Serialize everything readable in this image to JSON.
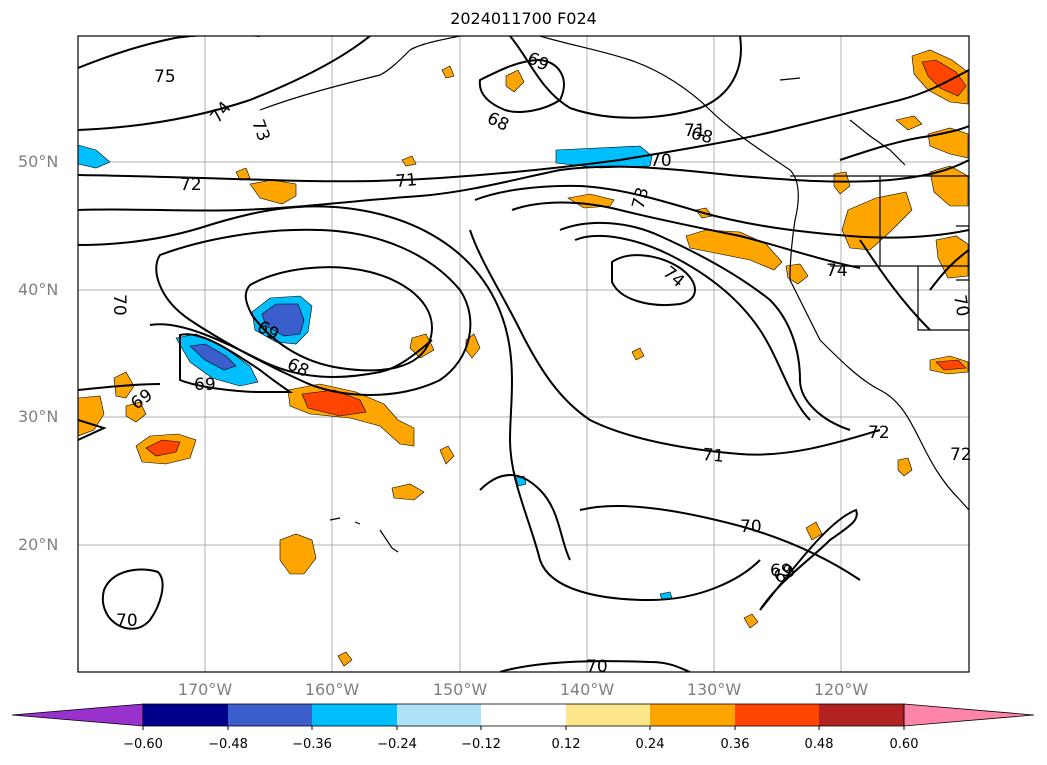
{
  "title": "2024011700 F024",
  "colors": {
    "contour": "#000000",
    "grid": "#b0b0b0",
    "coast": "#000000",
    "neg_light": "#a6dcf5",
    "neg_mid": "#00bfff",
    "neg_strong": "#3a5fcd",
    "pos_light": "#fde68a",
    "pos_mid": "#ffa500",
    "pos_strong": "#ff4500"
  },
  "axes": {
    "lat_labels": [
      "50°N",
      "40°N",
      "30°N",
      "20°N"
    ],
    "lon_labels": [
      "170°W",
      "160°W",
      "150°W",
      "140°W",
      "130°W",
      "120°W"
    ]
  },
  "contour_labels": [
    "75",
    "74",
    "73",
    "72",
    "71",
    "70",
    "69",
    "68",
    "69",
    "68",
    "70",
    "71",
    "73",
    "74",
    "74",
    "70",
    "68",
    "69",
    "69",
    "69",
    "71",
    "72",
    "70",
    "69",
    "70",
    "70",
    "72"
  ],
  "colorbar": {
    "ticks": [
      "−0.60",
      "−0.48",
      "−0.36",
      "−0.24",
      "−0.12",
      "0.12",
      "0.24",
      "0.36",
      "0.48",
      "0.60"
    ],
    "colors": [
      "#9932cc",
      "#00008b",
      "#3a5fcd",
      "#00bfff",
      "#aee2f8",
      "#ffffff",
      "#fde68a",
      "#ffa500",
      "#ff4500",
      "#b22222",
      "#ff85a8"
    ]
  }
}
